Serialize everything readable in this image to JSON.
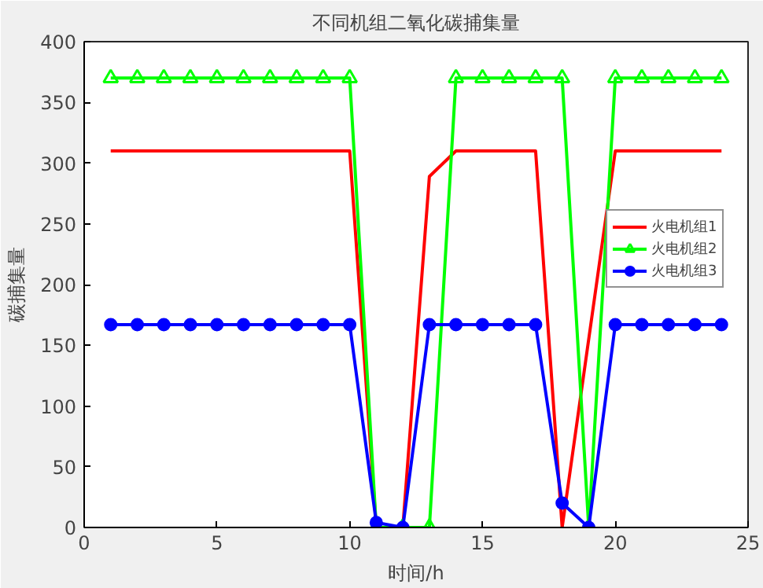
{
  "chart_data": {
    "type": "line",
    "title": "不同机组二氧化碳捕集量",
    "xlabel": "时间/h",
    "ylabel": "碳捕集量",
    "x": [
      1,
      2,
      3,
      4,
      5,
      6,
      7,
      8,
      9,
      10,
      11,
      12,
      13,
      14,
      15,
      16,
      17,
      18,
      19,
      20,
      21,
      22,
      23,
      24
    ],
    "series": [
      {
        "name": "火电机组1",
        "color": "#ff0000",
        "marker": "none",
        "values": [
          310,
          310,
          310,
          310,
          310,
          310,
          310,
          310,
          310,
          310,
          0,
          0,
          289,
          310,
          310,
          310,
          310,
          0,
          155,
          310,
          310,
          310,
          310,
          310
        ]
      },
      {
        "name": "火电机组2",
        "color": "#00ff00",
        "marker": "triangle",
        "values": [
          370,
          370,
          370,
          370,
          370,
          370,
          370,
          370,
          370,
          370,
          0,
          0,
          0,
          370,
          370,
          370,
          370,
          370,
          0,
          370,
          370,
          370,
          370,
          370
        ]
      },
      {
        "name": "火电机组3",
        "color": "#0000ff",
        "marker": "circle",
        "values": [
          167,
          167,
          167,
          167,
          167,
          167,
          167,
          167,
          167,
          167,
          4,
          0,
          167,
          167,
          167,
          167,
          167,
          20,
          0,
          167,
          167,
          167,
          167,
          167
        ]
      }
    ],
    "xlim": [
      0,
      25
    ],
    "xticks": [
      0,
      5,
      10,
      15,
      20,
      25
    ],
    "ylim": [
      0,
      400
    ],
    "yticks": [
      0,
      50,
      100,
      150,
      200,
      250,
      300,
      350,
      400
    ],
    "grid": false,
    "legend": "right",
    "line_style": "solid"
  }
}
